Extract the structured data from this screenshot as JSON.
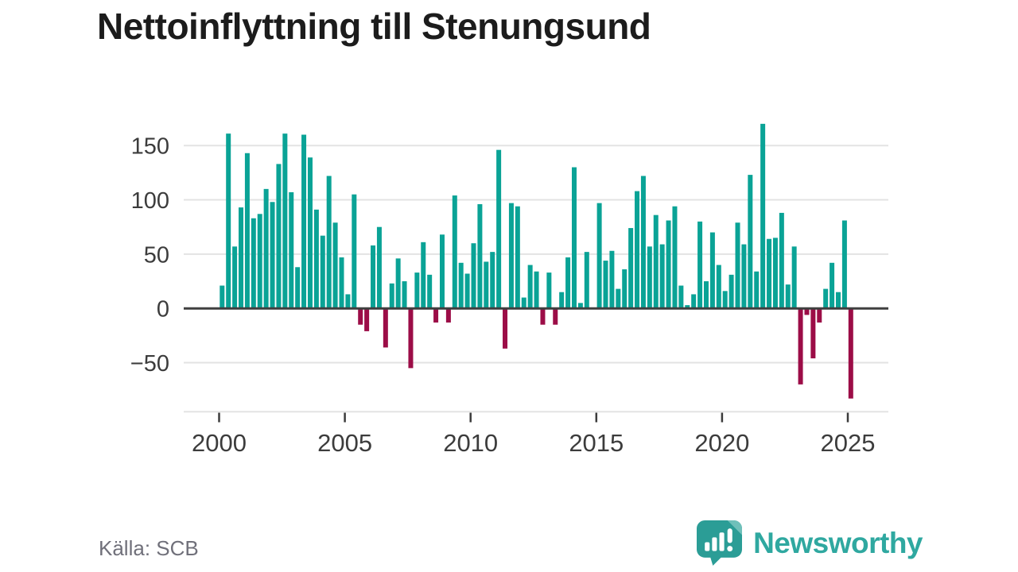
{
  "title": "Nettoinflyttning till Stenungsund",
  "source": "Källa: SCB",
  "branding": {
    "wordmark": "Newsworthy"
  },
  "colors": {
    "positive": "#0aa396",
    "negative": "#9c0d47",
    "gridline": "#e3e3e3",
    "zero_axis": "#3f3f3f",
    "tick_label": "#3c3c3c",
    "title_text": "#1c1c1c",
    "source_text": "#70707a",
    "brand_teal": "#2fa8a0",
    "brand_teal_dark": "#2b9d96",
    "brand_teal_light": "#6fc0ba"
  },
  "chart_data": {
    "type": "bar",
    "title": "Nettoinflyttning till Stenungsund",
    "xlabel": "",
    "ylabel": "",
    "start": "2000-Q1",
    "end": "2025-Q1",
    "frequency": "quarterly",
    "ylim": [
      -95,
      175
    ],
    "grid": true,
    "x_tick_labels": [
      "2000",
      "2005",
      "2010",
      "2015",
      "2020",
      "2025"
    ],
    "y_ticks": [
      {
        "label": "150",
        "value": 150
      },
      {
        "label": "100",
        "value": 100
      },
      {
        "label": "50",
        "value": 50
      },
      {
        "label": "0",
        "value": 0
      },
      {
        "label": "−50",
        "value": -50
      }
    ],
    "values": [
      21,
      161,
      57,
      93,
      143,
      83,
      87,
      110,
      98,
      133,
      161,
      107,
      38,
      160,
      139,
      91,
      67,
      122,
      79,
      47,
      13,
      105,
      -15,
      -21,
      58,
      75,
      -36,
      23,
      46,
      25,
      -55,
      33,
      61,
      31,
      -13,
      68,
      -13,
      104,
      42,
      32,
      60,
      96,
      43,
      52,
      146,
      -37,
      97,
      94,
      10,
      40,
      34,
      -15,
      33,
      -15,
      15,
      47,
      130,
      5,
      52,
      0,
      97,
      44,
      53,
      18,
      36,
      74,
      108,
      122,
      57,
      86,
      59,
      81,
      94,
      21,
      3,
      13,
      80,
      25,
      70,
      40,
      16,
      31,
      79,
      59,
      123,
      34,
      170,
      64,
      65,
      88,
      22,
      57,
      -70,
      -6,
      -46,
      -13,
      18,
      42,
      15,
      81,
      -83
    ]
  }
}
